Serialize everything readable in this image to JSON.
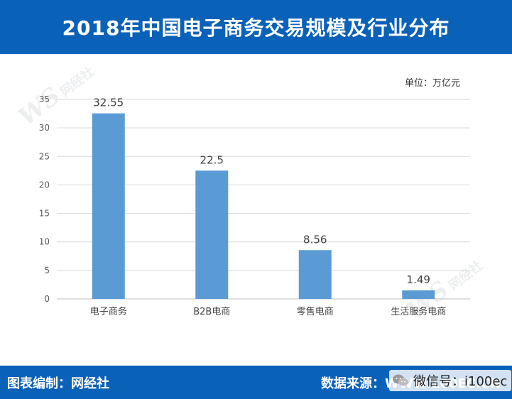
{
  "header": {
    "title": "2018年中国电子商务交易规模及行业分布"
  },
  "unit_label": "单位：万亿元",
  "footer": {
    "left": "图表编制：网经社",
    "right": "数据来源：WWW.100EC.CN",
    "wechat": "微信号：i100ec"
  },
  "watermark": {
    "logo": "WS",
    "name": "网经社",
    "url": "WWW.100EC.CN"
  },
  "colors": {
    "bar": "#5b9bd5",
    "band": "#0a61b8",
    "grid": "#d9d9d9"
  },
  "chart_data": {
    "type": "bar",
    "categories": [
      "电子商务",
      "B2B电商",
      "零售电商",
      "生活服务电商"
    ],
    "values": [
      32.55,
      22.5,
      8.56,
      1.49
    ],
    "data_labels": [
      "32.55",
      "22.5",
      "8.56",
      "1.49"
    ],
    "title": "2018年中国电子商务交易规模及行业分布",
    "xlabel": "",
    "ylabel": "",
    "ylim": [
      0,
      35
    ],
    "yticks": [
      0,
      5,
      10,
      15,
      20,
      25,
      30,
      35
    ],
    "grid": true,
    "legend": "none"
  }
}
